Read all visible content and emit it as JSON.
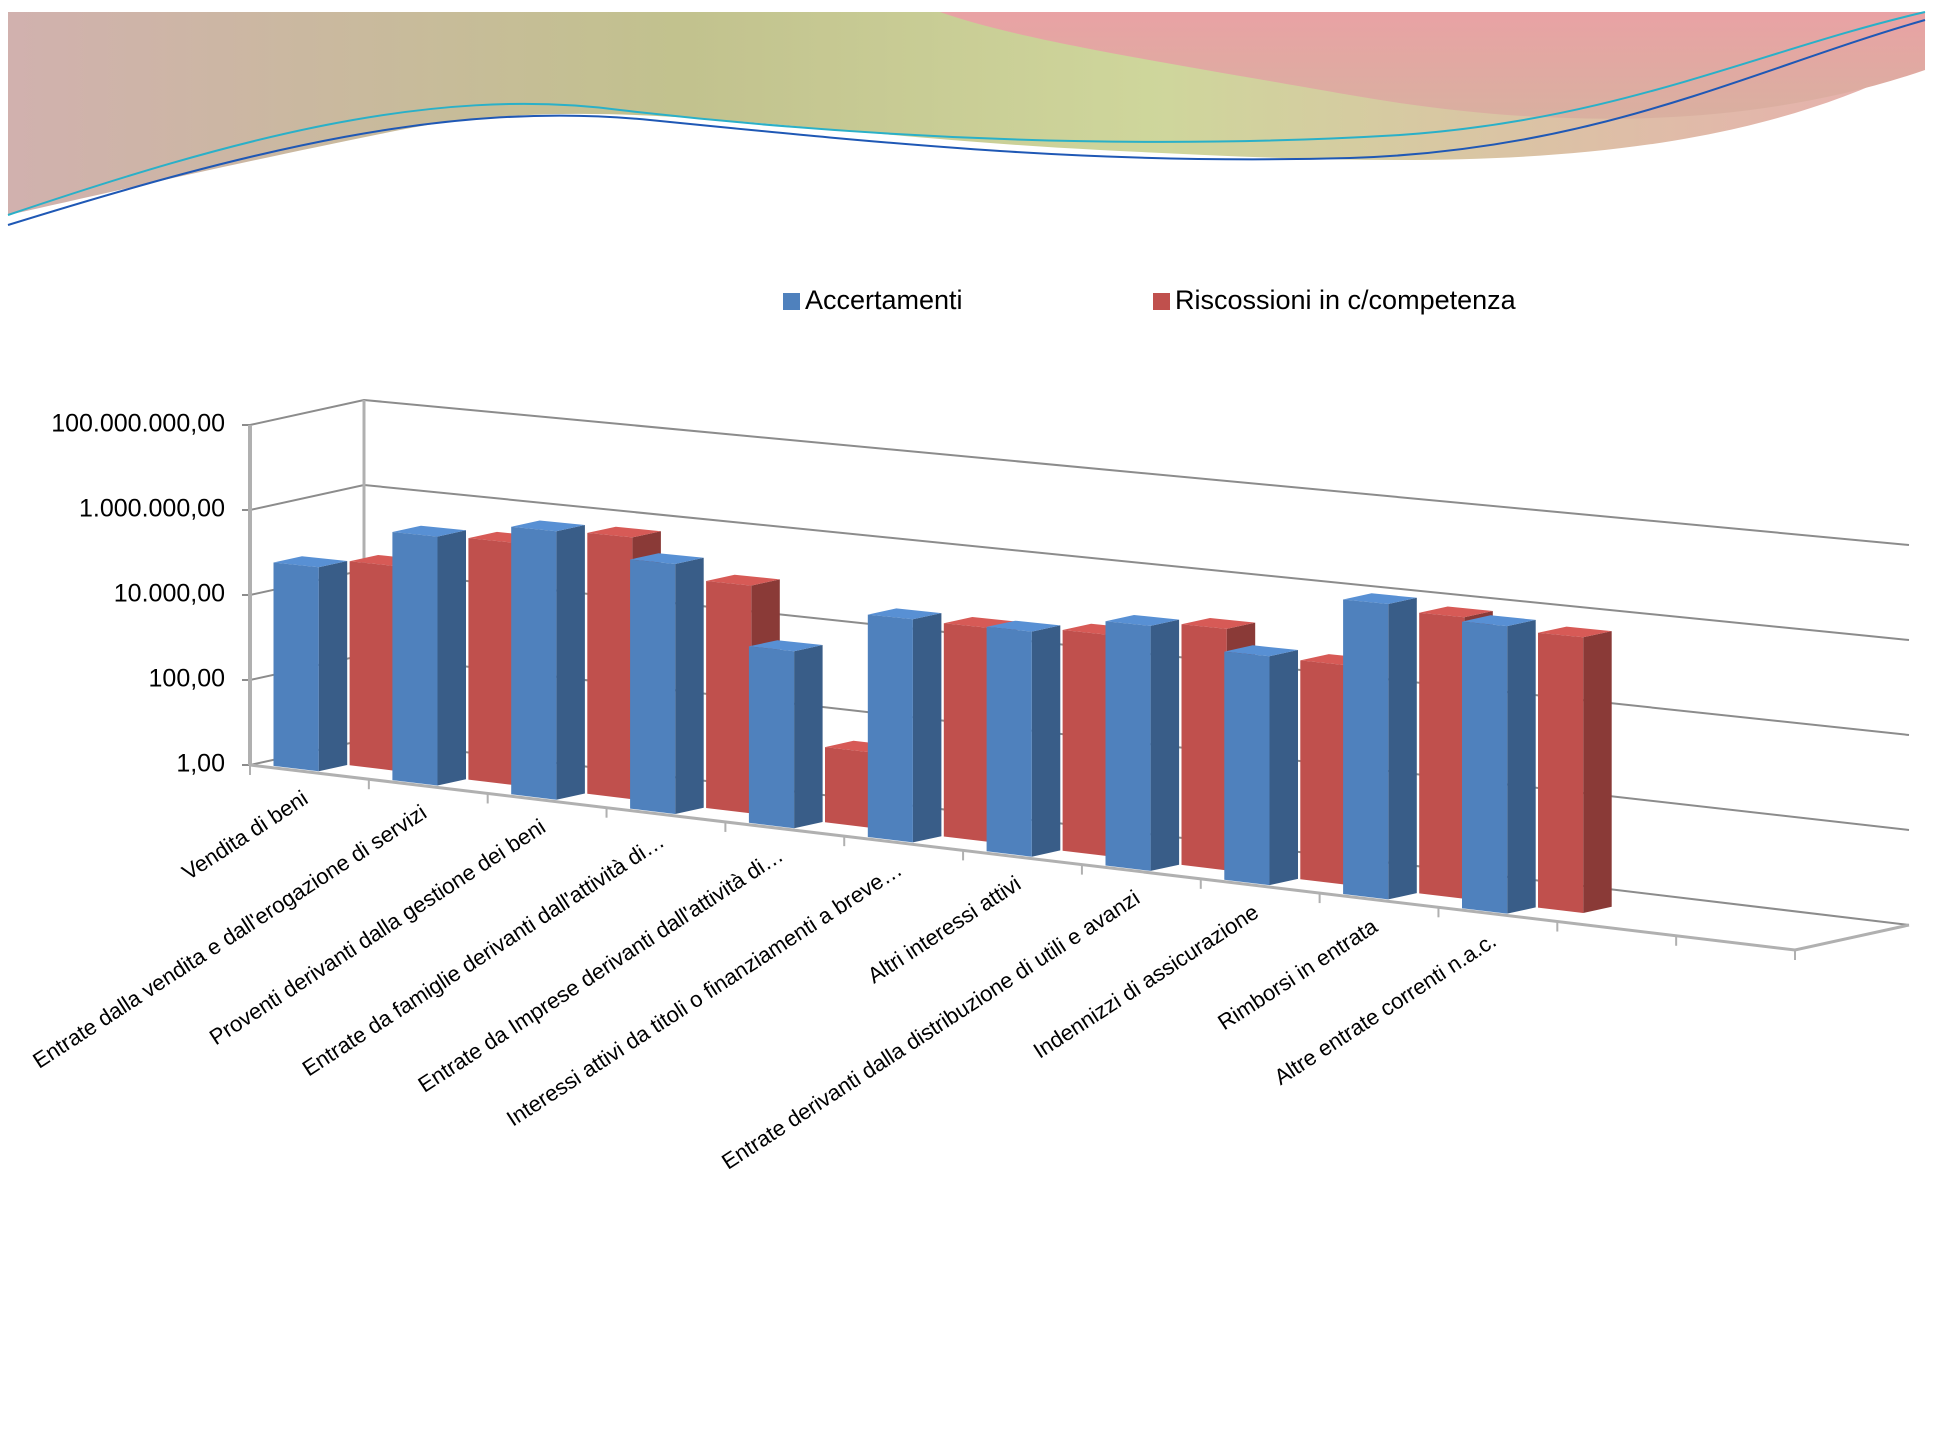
{
  "chart_data": {
    "type": "bar3d",
    "log_scale": true,
    "grid": true,
    "legend_position": "top",
    "categories": [
      "Vendita di beni",
      "Entrate dalla vendita e dall'erogazione di servizi",
      "Proventi derivanti dalla gestione dei beni",
      "Entrate da famiglie derivanti dall'attività di…",
      "Entrate da Imprese derivanti dall'attività di…",
      "Interessi attivi da titoli o finanziamenti a breve…",
      "Altri interessi attivi",
      "Entrate derivanti dalla distribuzione di utili e avanzi",
      "Indennizzi di assicurazione",
      "Rimborsi in entrata",
      "Altre entrate correnti n.a.c."
    ],
    "series": [
      {
        "name": "Accertamenti",
        "color": "#4f81bd",
        "values": [
          60000,
          600000,
          1500000,
          500000,
          10000,
          100000,
          100000,
          250000,
          100000,
          2500000,
          1500000
        ]
      },
      {
        "name": "Riscossioni in c/competenza",
        "color": "#c0504d",
        "values": [
          60000,
          400000,
          1000000,
          150000,
          50,
          60000,
          80000,
          200000,
          60000,
          1200000,
          800000
        ]
      }
    ],
    "ylim": [
      1,
      100000000
    ],
    "yticks": [
      {
        "value": 1,
        "label": "1,00"
      },
      {
        "value": 100,
        "label": "100,00"
      },
      {
        "value": 10000,
        "label": "10.000,00"
      },
      {
        "value": 1000000,
        "label": "1.000.000,00"
      },
      {
        "value": 100000000,
        "label": "100.000.000,00"
      }
    ]
  }
}
